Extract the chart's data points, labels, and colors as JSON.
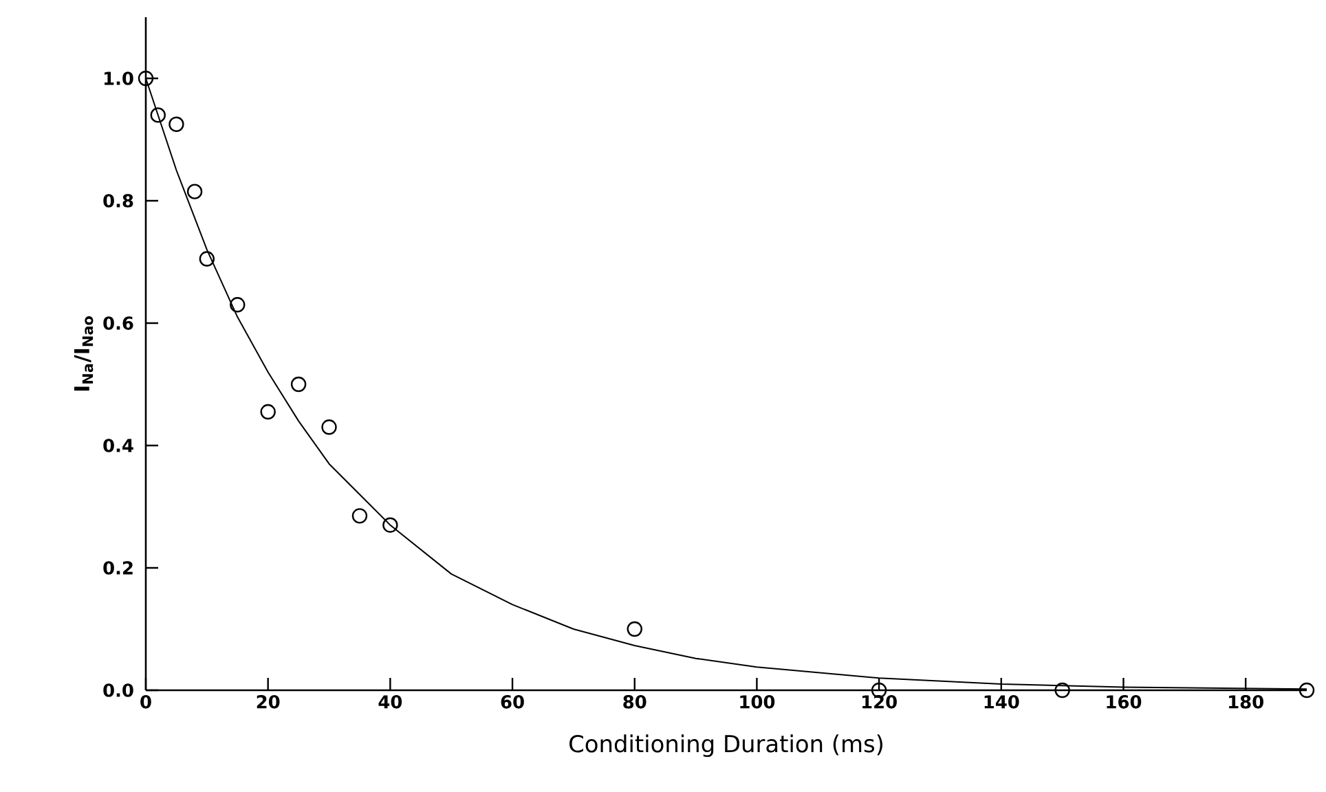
{
  "chart_data": {
    "type": "scatter",
    "xlabel": "Conditioning Duration (ms)",
    "ylabel": "I$_{Na}$/I$_{Nao}$",
    "xlim": [
      0,
      190
    ],
    "ylim": [
      0,
      1.1
    ],
    "xticks": [
      0,
      20,
      40,
      60,
      80,
      100,
      120,
      140,
      160,
      180
    ],
    "yticks": [
      {
        "value": 0,
        "label": "0.0"
      },
      0.2,
      0.4,
      0.6,
      0.8,
      {
        "value": 1,
        "label": "1.0"
      }
    ],
    "grid": false,
    "series": [
      {
        "marker": "circle",
        "color": "#000000",
        "x": [
          0,
          2,
          5,
          8,
          10,
          15,
          20,
          25,
          30,
          35,
          40,
          80,
          120,
          150,
          190
        ],
        "values": [
          1.0,
          0.94,
          0.925,
          0.815,
          0.705,
          0.63,
          0.455,
          0.5,
          0.43,
          0.285,
          0.27,
          0.1,
          0.0,
          0.0,
          0.0
        ]
      },
      {
        "type": "line",
        "marker": "none",
        "line_style": "solid",
        "color": "#000000",
        "x": [
          0,
          5,
          10,
          15,
          20,
          25,
          30,
          40,
          50,
          60,
          70,
          80,
          90,
          100,
          120,
          140,
          160,
          190
        ],
        "values": [
          1.0,
          0.85,
          0.72,
          0.61,
          0.52,
          0.44,
          0.37,
          0.27,
          0.19,
          0.14,
          0.1,
          0.073,
          0.052,
          0.038,
          0.02,
          0.01,
          0.005,
          0.002
        ]
      }
    ]
  }
}
